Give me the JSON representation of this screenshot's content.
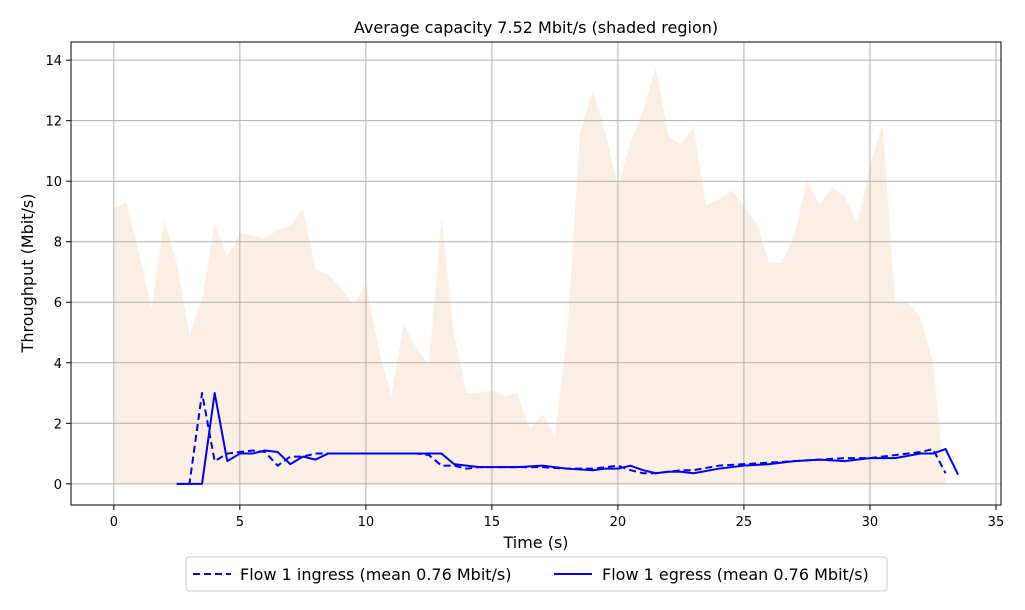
{
  "chart_data": {
    "type": "line",
    "title": "Average capacity 7.52 Mbit/s (shaded region)",
    "xlabel": "Time (s)",
    "ylabel": "Throughput (Mbit/s)",
    "xlim": [
      -1.7,
      35.2
    ],
    "ylim": [
      -0.7,
      14.6
    ],
    "xticks": [
      0,
      5,
      10,
      15,
      20,
      25,
      30,
      35
    ],
    "yticks": [
      0,
      2,
      4,
      6,
      8,
      10,
      12,
      14
    ],
    "grid": true,
    "legend_position": "bottom-center",
    "capacity": {
      "x": [
        0,
        0.5,
        1,
        1.5,
        2,
        2.5,
        3,
        3.5,
        4,
        4.5,
        5,
        5.5,
        6,
        6.5,
        7,
        7.5,
        8,
        8.5,
        9,
        9.5,
        10,
        10.5,
        11,
        11.5,
        12,
        12.5,
        13,
        13.5,
        14,
        14.5,
        15,
        15.5,
        16,
        16.5,
        17,
        17.5,
        18,
        18.5,
        19,
        19.5,
        20,
        20.5,
        21,
        21.5,
        22,
        22.5,
        23,
        23.5,
        24,
        24.5,
        25,
        25.5,
        26,
        26.5,
        27,
        27.5,
        28,
        28.5,
        29,
        29.5,
        30,
        30.5,
        31,
        31.5,
        32,
        32.5,
        33
      ],
      "y": [
        9.1,
        9.3,
        7.6,
        5.8,
        8.7,
        7.3,
        4.9,
        6.1,
        8.6,
        7.5,
        8.3,
        8.2,
        8.1,
        8.4,
        8.5,
        9.1,
        7.1,
        6.9,
        6.5,
        5.9,
        6.6,
        4.5,
        2.9,
        5.3,
        4.5,
        3.9,
        8.8,
        4.9,
        3.0,
        3.0,
        3.1,
        2.9,
        3.0,
        1.8,
        2.3,
        1.6,
        5.1,
        11.6,
        13.0,
        11.6,
        9.8,
        11.3,
        12.3,
        13.8,
        11.5,
        11.2,
        11.8,
        9.2,
        9.4,
        9.7,
        9.2,
        8.6,
        7.3,
        7.3,
        8.2,
        10.0,
        9.2,
        9.8,
        9.5,
        8.6,
        10.5,
        11.9,
        6.0,
        6.0,
        5.5,
        4.0,
        0.0
      ],
      "color": "#fbefe5"
    },
    "series": [
      {
        "name": "Flow 1 ingress (mean 0.76 Mbit/s)",
        "style": "dashed",
        "color": "#0000ee",
        "x": [
          2.5,
          3.0,
          3.5,
          4.0,
          4.5,
          5.0,
          5.5,
          6.0,
          6.5,
          7.0,
          7.5,
          8.0,
          8.5,
          9.0,
          10.0,
          11.0,
          12.0,
          12.5,
          13.0,
          13.5,
          14.0,
          14.5,
          15.0,
          16.0,
          17.0,
          18.0,
          19.0,
          20.0,
          20.5,
          21.0,
          21.5,
          22.0,
          22.5,
          23.0,
          24.0,
          25.0,
          26.0,
          27.0,
          28.0,
          29.0,
          30.0,
          31.0,
          32.0,
          32.5,
          33.0
        ],
        "y": [
          0.0,
          0.0,
          3.0,
          0.75,
          1.0,
          1.05,
          1.1,
          1.05,
          0.6,
          0.9,
          0.9,
          1.0,
          1.0,
          1.0,
          1.0,
          1.0,
          1.0,
          0.95,
          0.6,
          0.6,
          0.5,
          0.55,
          0.55,
          0.55,
          0.55,
          0.5,
          0.5,
          0.6,
          0.45,
          0.35,
          0.35,
          0.4,
          0.45,
          0.45,
          0.6,
          0.65,
          0.7,
          0.75,
          0.8,
          0.85,
          0.85,
          0.95,
          1.05,
          1.15,
          0.35
        ]
      },
      {
        "name": "Flow 1 egress (mean 0.76 Mbit/s)",
        "style": "solid",
        "color": "#0000ee",
        "x": [
          2.5,
          3.0,
          3.5,
          4.0,
          4.5,
          5.0,
          5.5,
          6.0,
          6.5,
          7.0,
          7.5,
          8.0,
          8.5,
          9.0,
          10.0,
          11.0,
          12.0,
          13.0,
          13.5,
          14.0,
          14.5,
          15.0,
          16.0,
          17.0,
          18.0,
          19.0,
          19.5,
          20.0,
          20.5,
          21.0,
          21.5,
          22.0,
          22.5,
          23.0,
          24.0,
          25.0,
          26.0,
          27.0,
          28.0,
          29.0,
          30.0,
          31.0,
          32.0,
          32.5,
          33.0,
          33.5
        ],
        "y": [
          0.0,
          0.0,
          0.0,
          3.0,
          0.75,
          1.0,
          1.0,
          1.1,
          1.05,
          0.65,
          0.9,
          0.8,
          1.0,
          1.0,
          1.0,
          1.0,
          1.0,
          1.0,
          0.65,
          0.6,
          0.55,
          0.55,
          0.55,
          0.6,
          0.5,
          0.45,
          0.5,
          0.5,
          0.6,
          0.45,
          0.35,
          0.4,
          0.4,
          0.35,
          0.5,
          0.6,
          0.65,
          0.75,
          0.8,
          0.75,
          0.85,
          0.85,
          1.0,
          1.0,
          1.15,
          0.3
        ]
      }
    ]
  }
}
